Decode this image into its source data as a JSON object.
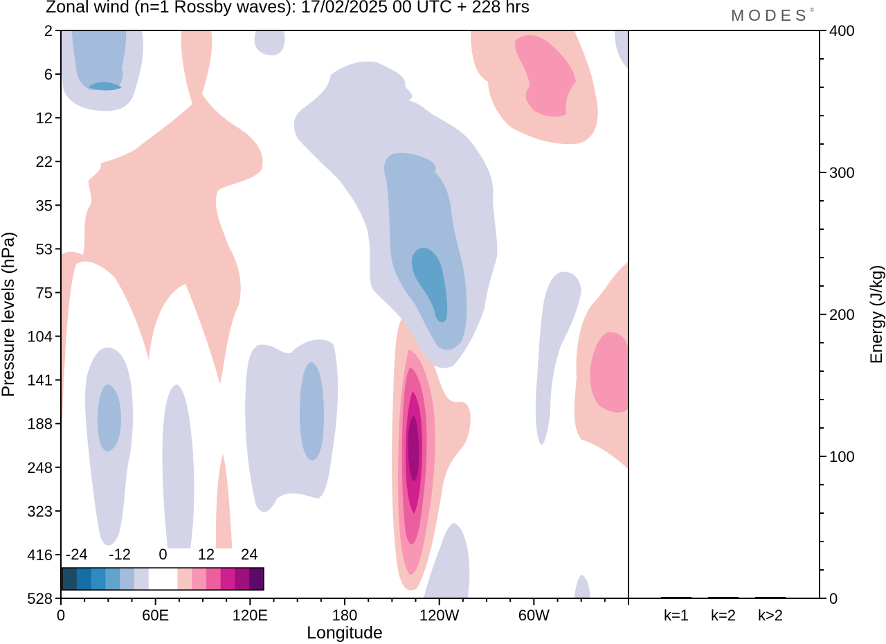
{
  "title": "Zonal wind (n=1 Rossby waves):  17/02/2025  00 UTC  + 228 hrs",
  "logo": "MODES",
  "logo_mark": "©",
  "colors": {
    "neg": [
      "#1d4a63",
      "#126ea3",
      "#2d8ac2",
      "#62a3cc",
      "#a3bcdb",
      "#d3d4e7"
    ],
    "zero": "#ffffff",
    "pos": [
      "#f8c6c1",
      "#f797b3",
      "#ec5f9f",
      "#d01f8e",
      "#a0107d",
      "#5c0a67"
    ]
  },
  "chart_data": [
    {
      "type": "heatmap",
      "description_of_axes": "longitude-pressure contour plot",
      "xlabel": "Longitude",
      "ylabel": "Pressure levels (hPa)",
      "x_ticks": [
        "0",
        "60E",
        "120E",
        "180",
        "120W",
        "60W"
      ],
      "y_ticks": [
        "2",
        "6",
        "12",
        "22",
        "35",
        "53",
        "75",
        "104",
        "141",
        "188",
        "248",
        "323",
        "416",
        "528"
      ],
      "colorbar": {
        "tick_labels": [
          "-24",
          "-12",
          "0",
          "12",
          "24"
        ],
        "levels": [
          -28,
          -24,
          -20,
          -16,
          -12,
          -8,
          -4,
          4,
          8,
          12,
          16,
          20,
          24
        ]
      }
    },
    {
      "type": "bar",
      "ylabel": "Energy (J/kg)",
      "ylim": [
        0,
        400
      ],
      "y_ticks": [
        "0",
        "100",
        "200",
        "300",
        "400"
      ],
      "categories": [
        "k=1",
        "k=2",
        "k>2"
      ],
      "values": [
        0.5,
        0.3,
        0.6
      ]
    }
  ]
}
